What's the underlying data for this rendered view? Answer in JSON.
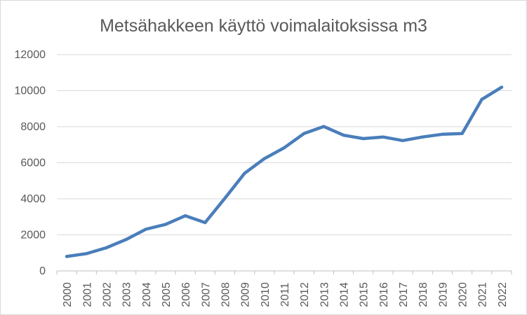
{
  "chart_data": {
    "type": "line",
    "title": "Metsähakkeen käyttö voimalaitoksissa m3",
    "xlabel": "",
    "ylabel": "",
    "categories": [
      "2000",
      "2001",
      "2002",
      "2003",
      "2004",
      "2005",
      "2006",
      "2007",
      "2008",
      "2009",
      "2010",
      "2011",
      "2012",
      "2013",
      "2014",
      "2015",
      "2016",
      "2017",
      "2018",
      "2019",
      "2020",
      "2021",
      "2022"
    ],
    "series": [
      {
        "name": "",
        "color": "#4a7ebb",
        "values": [
          800,
          960,
          1280,
          1740,
          2310,
          2580,
          3060,
          2680,
          4030,
          5420,
          6230,
          6830,
          7620,
          8010,
          7530,
          7340,
          7430,
          7230,
          7430,
          7580,
          7620,
          9520,
          10190
        ]
      }
    ],
    "yticks": [
      "0",
      "2000",
      "4000",
      "6000",
      "8000",
      "10000",
      "12000"
    ],
    "ylim": [
      0,
      12000
    ],
    "grid": "horizontal",
    "legend": "none"
  }
}
